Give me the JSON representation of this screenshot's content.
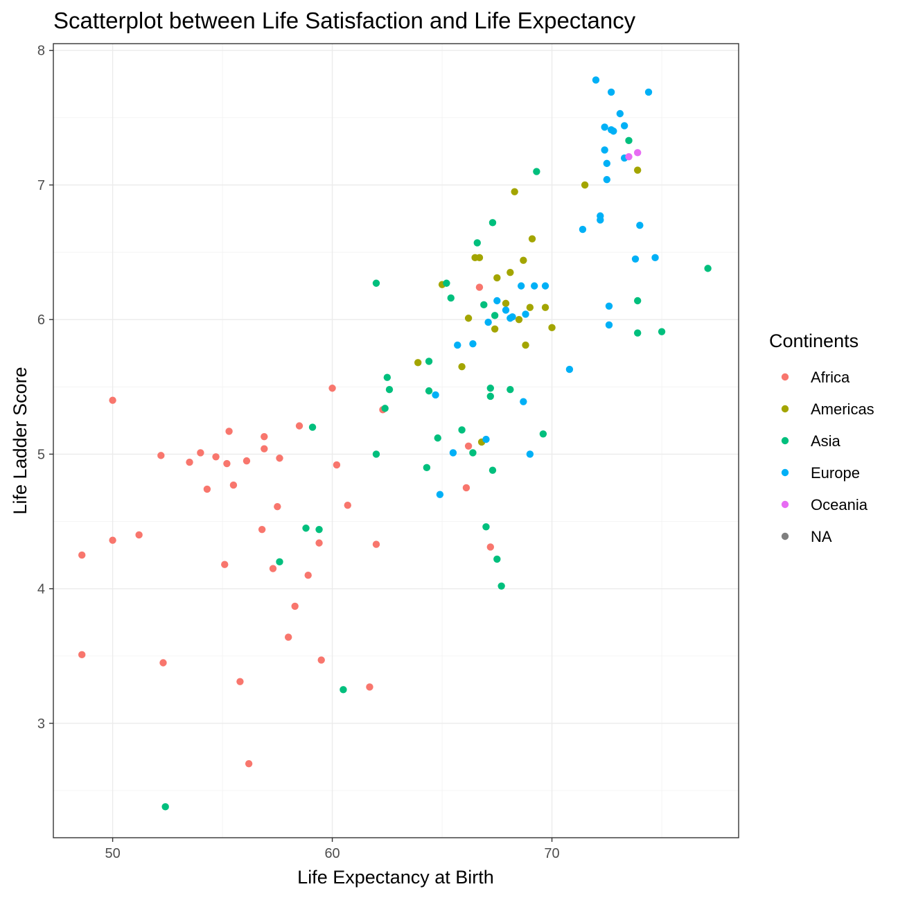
{
  "chart_data": {
    "type": "scatter",
    "title": "Scatterplot between Life Satisfaction and Life Expectancy",
    "xlabel": "Life Expectancy at Birth",
    "ylabel": "Life Ladder Score",
    "xlim": [
      47.3,
      78.5
    ],
    "ylim": [
      2.15,
      8.05
    ],
    "x_ticks": [
      50,
      60,
      70
    ],
    "y_ticks": [
      3,
      4,
      5,
      6,
      7,
      8
    ],
    "grid": true,
    "legend": {
      "title": "Continents",
      "placement": "right",
      "entries": [
        {
          "name": "Africa",
          "color": "#F8766D"
        },
        {
          "name": "Americas",
          "color": "#A3A500"
        },
        {
          "name": "Asia",
          "color": "#00BF7D"
        },
        {
          "name": "Europe",
          "color": "#00B0F6"
        },
        {
          "name": "Oceania",
          "color": "#E76BF3"
        },
        {
          "name": "NA",
          "color": "#7F7F7F"
        }
      ]
    },
    "series": [
      {
        "name": "Africa",
        "points": [
          [
            48.6,
            4.25
          ],
          [
            48.6,
            3.51
          ],
          [
            50.0,
            5.4
          ],
          [
            50.0,
            4.36
          ],
          [
            51.2,
            4.4
          ],
          [
            52.2,
            4.99
          ],
          [
            52.3,
            3.45
          ],
          [
            53.5,
            4.94
          ],
          [
            54.0,
            5.01
          ],
          [
            54.3,
            4.74
          ],
          [
            54.7,
            4.98
          ],
          [
            55.1,
            4.18
          ],
          [
            55.2,
            4.93
          ],
          [
            55.3,
            5.17
          ],
          [
            55.5,
            4.77
          ],
          [
            55.8,
            3.31
          ],
          [
            56.1,
            4.95
          ],
          [
            56.2,
            2.7
          ],
          [
            56.8,
            4.44
          ],
          [
            56.9,
            5.04
          ],
          [
            56.9,
            5.13
          ],
          [
            57.3,
            4.15
          ],
          [
            57.5,
            4.61
          ],
          [
            57.6,
            4.97
          ],
          [
            58.0,
            3.64
          ],
          [
            58.3,
            3.87
          ],
          [
            58.5,
            5.21
          ],
          [
            58.9,
            4.1
          ],
          [
            59.4,
            4.34
          ],
          [
            59.5,
            3.47
          ],
          [
            60.0,
            5.49
          ],
          [
            60.2,
            4.92
          ],
          [
            60.7,
            4.62
          ],
          [
            61.7,
            3.27
          ],
          [
            62.0,
            4.33
          ],
          [
            62.3,
            5.33
          ],
          [
            66.1,
            4.75
          ],
          [
            66.2,
            5.06
          ],
          [
            66.7,
            6.24
          ],
          [
            67.2,
            4.31
          ]
        ]
      },
      {
        "name": "Americas",
        "points": [
          [
            63.9,
            5.68
          ],
          [
            65.0,
            6.26
          ],
          [
            65.9,
            5.65
          ],
          [
            66.2,
            6.01
          ],
          [
            66.5,
            6.46
          ],
          [
            66.7,
            6.46
          ],
          [
            66.8,
            5.09
          ],
          [
            67.4,
            5.93
          ],
          [
            67.5,
            6.31
          ],
          [
            67.9,
            6.12
          ],
          [
            68.1,
            6.35
          ],
          [
            68.3,
            6.95
          ],
          [
            68.5,
            6.0
          ],
          [
            68.7,
            6.44
          ],
          [
            68.8,
            5.81
          ],
          [
            69.0,
            6.09
          ],
          [
            69.1,
            6.6
          ],
          [
            69.7,
            6.09
          ],
          [
            70.0,
            5.94
          ],
          [
            71.5,
            7.0
          ],
          [
            73.9,
            7.11
          ]
        ]
      },
      {
        "name": "Asia",
        "points": [
          [
            52.4,
            2.38
          ],
          [
            57.6,
            4.2
          ],
          [
            58.8,
            4.45
          ],
          [
            59.1,
            5.2
          ],
          [
            59.4,
            4.44
          ],
          [
            60.5,
            3.25
          ],
          [
            62.0,
            6.27
          ],
          [
            62.0,
            5.0
          ],
          [
            62.4,
            5.34
          ],
          [
            62.5,
            5.57
          ],
          [
            62.6,
            5.48
          ],
          [
            64.3,
            4.9
          ],
          [
            64.4,
            5.69
          ],
          [
            64.4,
            5.47
          ],
          [
            64.8,
            5.12
          ],
          [
            65.2,
            6.27
          ],
          [
            65.4,
            6.16
          ],
          [
            65.9,
            5.18
          ],
          [
            66.4,
            5.01
          ],
          [
            66.6,
            6.57
          ],
          [
            66.9,
            6.11
          ],
          [
            67.0,
            4.46
          ],
          [
            67.2,
            5.49
          ],
          [
            67.2,
            5.43
          ],
          [
            67.3,
            4.88
          ],
          [
            67.3,
            6.72
          ],
          [
            67.4,
            6.03
          ],
          [
            67.5,
            4.22
          ],
          [
            67.7,
            4.02
          ],
          [
            68.1,
            5.48
          ],
          [
            69.3,
            7.1
          ],
          [
            69.6,
            5.15
          ],
          [
            73.5,
            7.33
          ],
          [
            73.9,
            6.14
          ],
          [
            73.9,
            5.9
          ],
          [
            75.0,
            5.91
          ],
          [
            77.1,
            6.38
          ]
        ]
      },
      {
        "name": "Europe",
        "points": [
          [
            64.7,
            5.44
          ],
          [
            64.9,
            4.7
          ],
          [
            65.5,
            5.01
          ],
          [
            65.7,
            5.81
          ],
          [
            66.4,
            5.82
          ],
          [
            67.0,
            5.11
          ],
          [
            67.1,
            5.98
          ],
          [
            67.5,
            6.14
          ],
          [
            67.9,
            6.07
          ],
          [
            68.1,
            6.01
          ],
          [
            68.2,
            6.02
          ],
          [
            68.6,
            6.25
          ],
          [
            68.7,
            5.39
          ],
          [
            68.8,
            6.04
          ],
          [
            69.0,
            5.0
          ],
          [
            69.2,
            6.25
          ],
          [
            69.7,
            6.25
          ],
          [
            70.8,
            5.63
          ],
          [
            71.4,
            6.67
          ],
          [
            72.0,
            7.78
          ],
          [
            72.2,
            6.77
          ],
          [
            72.2,
            6.74
          ],
          [
            72.4,
            7.43
          ],
          [
            72.4,
            7.26
          ],
          [
            72.5,
            7.16
          ],
          [
            72.5,
            7.04
          ],
          [
            72.6,
            6.1
          ],
          [
            72.6,
            5.96
          ],
          [
            72.7,
            7.41
          ],
          [
            72.7,
            7.69
          ],
          [
            72.8,
            7.4
          ],
          [
            73.1,
            7.53
          ],
          [
            73.3,
            7.44
          ],
          [
            73.3,
            7.2
          ],
          [
            73.8,
            6.45
          ],
          [
            74.0,
            6.7
          ],
          [
            74.4,
            7.69
          ],
          [
            74.7,
            6.46
          ]
        ]
      },
      {
        "name": "Oceania",
        "points": [
          [
            73.5,
            7.21
          ],
          [
            73.9,
            7.24
          ]
        ]
      },
      {
        "name": "NA",
        "points": []
      }
    ]
  }
}
